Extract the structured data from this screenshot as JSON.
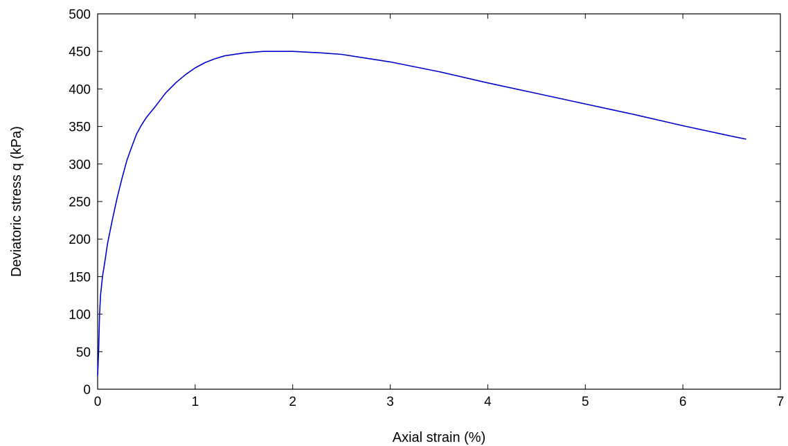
{
  "chart_data": {
    "type": "line",
    "title": "",
    "xlabel": "Axial strain (%)",
    "ylabel": "Deviatoric stress q (kPa)",
    "xlim": [
      0,
      7
    ],
    "ylim": [
      0,
      500
    ],
    "xticks": [
      "0",
      "1",
      "2",
      "3",
      "4",
      "5",
      "6",
      "7"
    ],
    "yticks": [
      "0",
      "50",
      "100",
      "150",
      "200",
      "250",
      "300",
      "350",
      "400",
      "450",
      "500"
    ],
    "grid": false,
    "legend": "none",
    "series": [
      {
        "color": "#0000cc",
        "x": [
          0,
          0.01,
          0.02,
          0.03,
          0.05,
          0.08,
          0.1,
          0.15,
          0.2,
          0.25,
          0.3,
          0.35,
          0.4,
          0.45,
          0.5,
          0.55,
          0.6,
          0.7,
          0.8,
          0.9,
          1.0,
          1.1,
          1.2,
          1.3,
          1.5,
          1.7,
          2.0,
          2.3,
          2.5,
          3.0,
          3.5,
          4.0,
          4.5,
          5.0,
          5.5,
          6.0,
          6.5,
          6.65
        ],
        "y": [
          18,
          50,
          100,
          125,
          150,
          175,
          193,
          225,
          255,
          281,
          305,
          323,
          340,
          352,
          362,
          370,
          378,
          395,
          408,
          419,
          428,
          435,
          440,
          444,
          448,
          450,
          450,
          448,
          446,
          436,
          423,
          408,
          394,
          380,
          366,
          351,
          337,
          333
        ]
      }
    ]
  }
}
